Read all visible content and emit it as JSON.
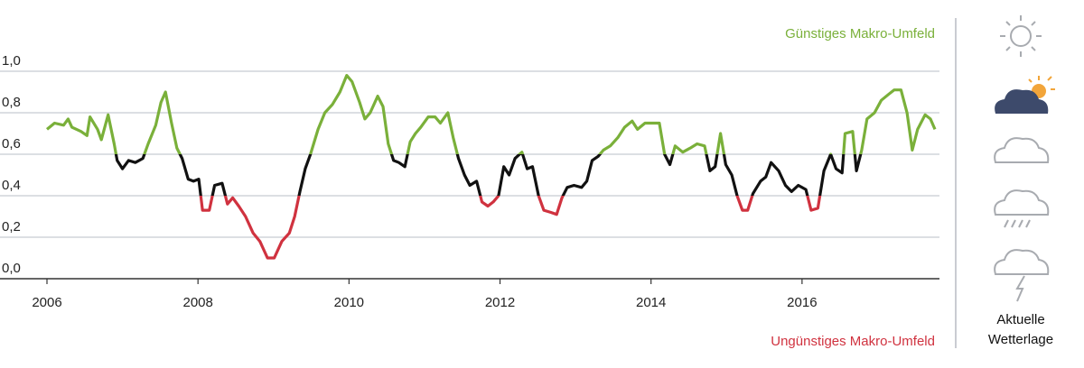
{
  "chart_data": {
    "type": "line",
    "annotations": {
      "top": "Günstiges Makro-Umfeld",
      "bottom": "Ungünstiges Makro-Umfeld"
    },
    "annotation_colors": {
      "top": "#7ab03a",
      "bottom": "#d0323f"
    },
    "sidebar_label": "Aktuelle Wetterlage",
    "x": [
      2006.0,
      2006.1,
      2006.22,
      2006.28,
      2006.33,
      2006.45,
      2006.53,
      2006.57,
      2006.67,
      2006.72,
      2006.81,
      2006.89,
      2006.93,
      2007.0,
      2007.08,
      2007.17,
      2007.27,
      2007.34,
      2007.44,
      2007.51,
      2007.57,
      2007.65,
      2007.72,
      2007.79,
      2007.87,
      2007.94,
      2008.01,
      2008.06,
      2008.15,
      2008.22,
      2008.32,
      2008.39,
      2008.46,
      2008.54,
      2008.63,
      2008.73,
      2008.82,
      2008.92,
      2009.01,
      2009.11,
      2009.21,
      2009.28,
      2009.35,
      2009.42,
      2009.49,
      2009.59,
      2009.68,
      2009.78,
      2009.88,
      2009.97,
      2010.04,
      2010.14,
      2010.21,
      2010.28,
      2010.38,
      2010.45,
      2010.52,
      2010.59,
      2010.66,
      2010.74,
      2010.81,
      2010.88,
      2010.95,
      2011.05,
      2011.14,
      2011.21,
      2011.31,
      2011.38,
      2011.45,
      2011.53,
      2011.6,
      2011.69,
      2011.76,
      2011.84,
      2011.91,
      2011.98,
      2012.05,
      2012.12,
      2012.2,
      2012.29,
      2012.36,
      2012.43,
      2012.51,
      2012.58,
      2012.67,
      2012.75,
      2012.82,
      2012.89,
      2012.98,
      2013.08,
      2013.15,
      2013.22,
      2013.3,
      2013.37,
      2013.46,
      2013.56,
      2013.65,
      2013.75,
      2013.82,
      2013.92,
      2014.01,
      2014.11,
      2014.18,
      2014.25,
      2014.32,
      2014.42,
      2014.52,
      2014.61,
      2014.71,
      2014.78,
      2014.85,
      2014.92,
      2014.99,
      2015.07,
      2015.14,
      2015.21,
      2015.28,
      2015.35,
      2015.45,
      2015.52,
      2015.59,
      2015.69,
      2015.78,
      2015.86,
      2015.95,
      2016.05,
      2016.12,
      2016.21,
      2016.29,
      2016.38,
      2016.45,
      2016.53,
      2016.57,
      2016.67,
      2016.72,
      2016.79,
      2016.86,
      2016.96,
      2017.05,
      2017.15,
      2017.22,
      2017.31,
      2017.39,
      2017.46,
      2017.53,
      2017.63,
      2017.7,
      2017.76
    ],
    "values": [
      0.72,
      0.75,
      0.74,
      0.77,
      0.73,
      0.71,
      0.69,
      0.78,
      0.72,
      0.67,
      0.79,
      0.65,
      0.57,
      0.53,
      0.57,
      0.56,
      0.58,
      0.65,
      0.74,
      0.85,
      0.9,
      0.75,
      0.63,
      0.58,
      0.48,
      0.47,
      0.48,
      0.33,
      0.33,
      0.45,
      0.46,
      0.36,
      0.39,
      0.35,
      0.3,
      0.22,
      0.18,
      0.1,
      0.1,
      0.18,
      0.22,
      0.3,
      0.42,
      0.53,
      0.6,
      0.72,
      0.8,
      0.84,
      0.9,
      0.98,
      0.95,
      0.85,
      0.77,
      0.8,
      0.88,
      0.83,
      0.65,
      0.57,
      0.56,
      0.54,
      0.66,
      0.7,
      0.73,
      0.78,
      0.78,
      0.75,
      0.8,
      0.68,
      0.58,
      0.5,
      0.45,
      0.47,
      0.37,
      0.35,
      0.37,
      0.4,
      0.54,
      0.5,
      0.58,
      0.61,
      0.53,
      0.54,
      0.4,
      0.33,
      0.32,
      0.31,
      0.39,
      0.44,
      0.45,
      0.44,
      0.47,
      0.57,
      0.59,
      0.62,
      0.64,
      0.68,
      0.73,
      0.76,
      0.72,
      0.75,
      0.75,
      0.75,
      0.6,
      0.55,
      0.64,
      0.61,
      0.63,
      0.65,
      0.64,
      0.52,
      0.54,
      0.7,
      0.55,
      0.5,
      0.4,
      0.33,
      0.33,
      0.41,
      0.47,
      0.49,
      0.56,
      0.52,
      0.45,
      0.42,
      0.45,
      0.43,
      0.33,
      0.34,
      0.52,
      0.6,
      0.53,
      0.51,
      0.7,
      0.71,
      0.52,
      0.62,
      0.77,
      0.8,
      0.86,
      0.89,
      0.91,
      0.91,
      0.8,
      0.62,
      0.72,
      0.79,
      0.77,
      0.72
    ],
    "color_ranges": [
      {
        "from": 0.6,
        "to": 1.0,
        "color": "#7ab03a"
      },
      {
        "from": 0.4,
        "to": 0.6,
        "color": "#111111"
      },
      {
        "from": 0.0,
        "to": 0.4,
        "color": "#d0323f"
      }
    ],
    "xlim": [
      2006,
      2017.82
    ],
    "ylim": [
      0,
      1
    ],
    "xticks": [
      2006,
      2008,
      2010,
      2012,
      2014,
      2016
    ],
    "yticks": [
      {
        "value": 0,
        "label": "0,0"
      },
      {
        "value": 0.2,
        "label": "0,2"
      },
      {
        "value": 0.4,
        "label": "0,4"
      },
      {
        "value": 0.6,
        "label": "0,6"
      },
      {
        "value": 0.8,
        "label": "0,8"
      },
      {
        "value": 1,
        "label": "1,0"
      }
    ],
    "grid": true
  }
}
